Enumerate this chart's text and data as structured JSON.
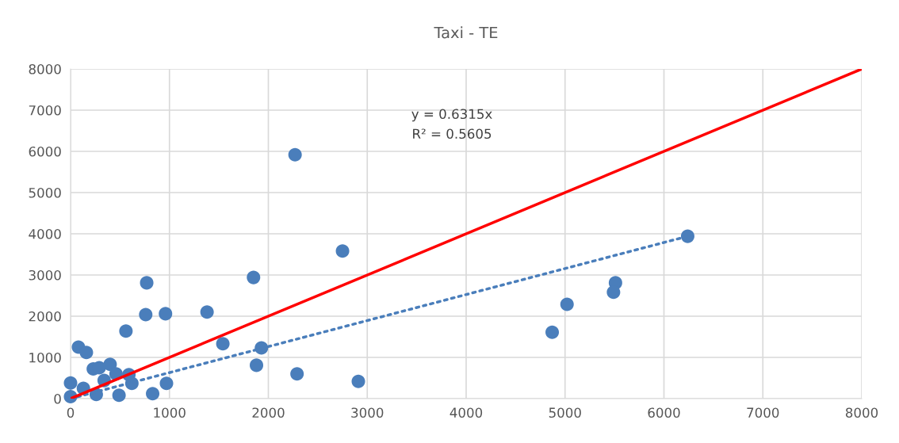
{
  "chart_data": {
    "type": "scatter",
    "title": "Taxi - TE",
    "annotations": [
      "y = 0.6315x",
      "R² = 0.5605"
    ],
    "xlim": [
      0,
      8000
    ],
    "ylim": [
      0,
      8000
    ],
    "xticks": [
      0,
      1000,
      2000,
      3000,
      4000,
      5000,
      6000,
      7000,
      8000
    ],
    "yticks": [
      0,
      1000,
      2000,
      3000,
      4000,
      5000,
      6000,
      7000,
      8000
    ],
    "grid": true,
    "marker": "circle",
    "series": [
      {
        "color": "#4a7ebb",
        "x": [
          6240,
          5510,
          5490,
          5020,
          4870,
          2750,
          2910,
          2270,
          1850,
          2290,
          1930,
          1880,
          1540,
          1380,
          960,
          970,
          830,
          770,
          760,
          560,
          80,
          160,
          400,
          230,
          290,
          460,
          590,
          620,
          340,
          490,
          0,
          0,
          130,
          260
        ],
        "values": [
          3940,
          2810,
          2580,
          2290,
          1610,
          3580,
          420,
          5920,
          2940,
          600,
          1230,
          810,
          1330,
          2100,
          2060,
          370,
          120,
          2810,
          2040,
          1640,
          1250,
          1120,
          830,
          720,
          750,
          600,
          580,
          370,
          440,
          80,
          380,
          50,
          250,
          100
        ]
      },
      {
        "type": "line",
        "color": "#4a7ebb",
        "line_style": "dotted",
        "marker": "none",
        "x": [
          0,
          6240
        ],
        "values": [
          0,
          3940
        ]
      },
      {
        "type": "line",
        "color": "#ff0000",
        "line_style": "solid",
        "marker": "none",
        "x": [
          0,
          8000
        ],
        "values": [
          0,
          8000
        ]
      }
    ]
  }
}
